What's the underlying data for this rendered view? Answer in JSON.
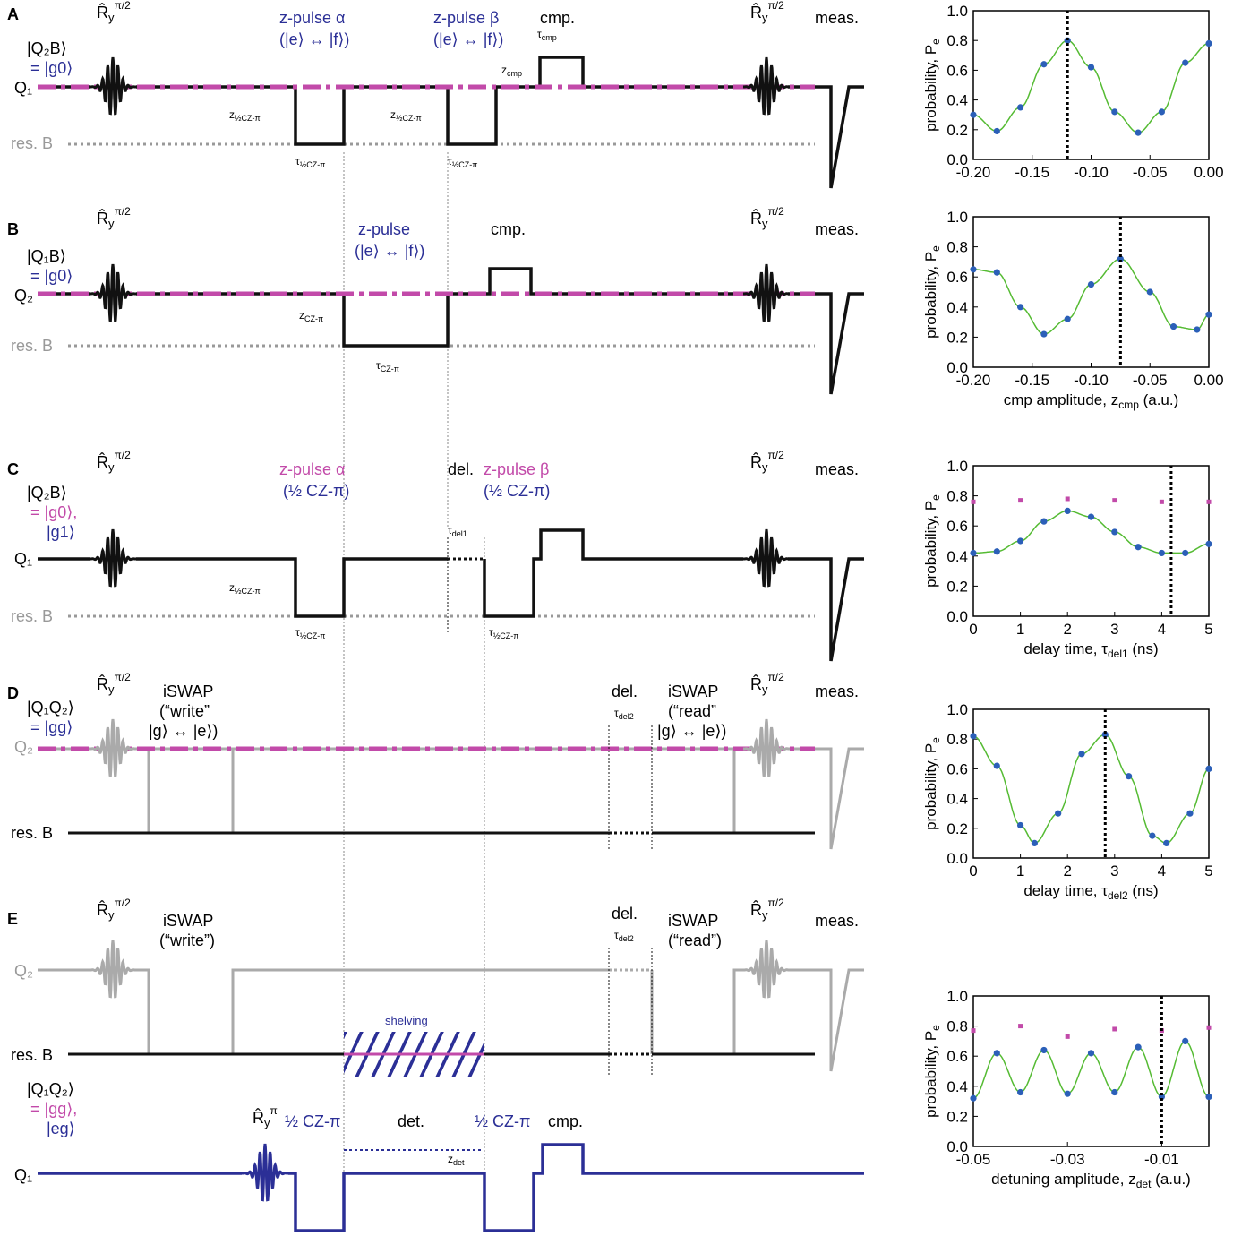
{
  "panels": {
    "A": {
      "letter": "A",
      "state_label": [
        "|Q₂B⟩",
        "= |g0⟩"
      ],
      "qubit": "Q₁",
      "resonator": "res. B",
      "rot": "R̂ᵧ π/2",
      "pulse_alpha": [
        "z-pulse α",
        "(|e⟩ ↔ |f⟩)"
      ],
      "pulse_beta": [
        "z-pulse β",
        "(|e⟩ ↔ |f⟩)"
      ],
      "cmp": "cmp.",
      "meas": "meas."
    },
    "B": {
      "letter": "B",
      "state_label": [
        "|Q₁B⟩",
        "= |g0⟩"
      ],
      "qubit": "Q₂",
      "resonator": "res. B",
      "pulse": [
        "z-pulse",
        "(|e⟩ ↔ |f⟩)"
      ],
      "cmp": "cmp.",
      "meas": "meas."
    },
    "C": {
      "letter": "C",
      "state_label": [
        "|Q₂B⟩",
        "= |g0⟩,",
        "|g1⟩"
      ],
      "qubit": "Q₁",
      "resonator": "res. B",
      "pulse_alpha": [
        "z-pulse α",
        "(½ CZ-π)"
      ],
      "del": "del.",
      "pulse_beta": [
        "z-pulse β",
        "(½ CZ-π)"
      ],
      "meas": "meas."
    },
    "D": {
      "letter": "D",
      "state_label": [
        "|Q₁Q₂⟩",
        "= |gg⟩"
      ],
      "qubit": "Q₂",
      "resonator": "res. B",
      "iswap_write": [
        "iSWAP",
        "(“write”",
        "|g⟩ ↔ |e⟩)"
      ],
      "iswap_read": [
        "iSWAP",
        "(“read”",
        "|g⟩ ↔ |e⟩)"
      ],
      "del": "del.",
      "meas": "meas."
    },
    "E": {
      "letter": "E",
      "qubit2": "Q₂",
      "resonator": "res. B",
      "qubit1": "Q₁",
      "state_label": [
        "|Q₁Q₂⟩",
        "= |gg⟩,",
        "|eg⟩"
      ],
      "iswap_write": [
        "iSWAP",
        "(“write”)"
      ],
      "iswap_read": [
        "iSWAP",
        "(“read”)"
      ],
      "shelving": "shelving",
      "half_cz1": "½ CZ-π",
      "det": "det.",
      "half_cz2": "½ CZ-π",
      "cmp": "cmp.",
      "del": "del.",
      "meas": "meas."
    }
  },
  "plots": {
    "ylabel": "probability, P",
    "ylabel_sub": "e",
    "A": {
      "xticks": [
        "-0.20",
        "-0.15",
        "-0.10",
        "-0.05",
        "0.00"
      ],
      "xlabel": "",
      "marker": -0.12
    },
    "B": {
      "xticks": [
        "-0.20",
        "-0.15",
        "-0.10",
        "-0.05",
        "0.00"
      ],
      "xlabel": "cmp amplitude, z",
      "xlabel_sub": "cmp",
      "xlabel_tail": " (a.u.)",
      "marker": -0.075
    },
    "C": {
      "xticks": [
        "0",
        "1",
        "2",
        "3",
        "4",
        "5"
      ],
      "xlabel": "delay time, τ",
      "xlabel_sub": "del1",
      "xlabel_tail": " (ns)",
      "marker": 4.2
    },
    "D": {
      "xticks": [
        "0",
        "1",
        "2",
        "3",
        "4",
        "5"
      ],
      "xlabel": "delay time, τ",
      "xlabel_sub": "del2",
      "xlabel_tail": " (ns)",
      "marker": 2.8
    },
    "E": {
      "xticks": [
        "-0.05",
        "-0.03",
        "-0.01"
      ],
      "xlabel": "detuning amplitude, z",
      "xlabel_sub": "det",
      "xlabel_tail": " (a.u.)",
      "marker": -0.01
    },
    "yticks": [
      "0.0",
      "0.2",
      "0.4",
      "0.6",
      "0.8",
      "1.0"
    ]
  },
  "chart_data": [
    {
      "type": "scatter",
      "panel": "A",
      "xlim": [
        -0.2,
        0.0
      ],
      "ylim": [
        0,
        1
      ],
      "series": [
        {
          "values": [
            [
              -0.2,
              0.3
            ],
            [
              -0.18,
              0.19
            ],
            [
              -0.16,
              0.35
            ],
            [
              -0.14,
              0.64
            ],
            [
              -0.12,
              0.8
            ],
            [
              -0.1,
              0.62
            ],
            [
              -0.08,
              0.32
            ],
            [
              -0.06,
              0.18
            ],
            [
              -0.04,
              0.32
            ],
            [
              -0.02,
              0.65
            ],
            [
              0.0,
              0.78
            ]
          ]
        }
      ]
    },
    {
      "type": "scatter",
      "panel": "B",
      "xlim": [
        -0.2,
        0.0
      ],
      "ylim": [
        0,
        1
      ],
      "series": [
        {
          "values": [
            [
              -0.2,
              0.65
            ],
            [
              -0.18,
              0.63
            ],
            [
              -0.16,
              0.4
            ],
            [
              -0.14,
              0.22
            ],
            [
              -0.12,
              0.32
            ],
            [
              -0.1,
              0.55
            ],
            [
              -0.075,
              0.72
            ],
            [
              -0.05,
              0.5
            ],
            [
              -0.03,
              0.27
            ],
            [
              -0.01,
              0.25
            ],
            [
              0.0,
              0.35
            ]
          ]
        }
      ]
    },
    {
      "type": "scatter",
      "panel": "C",
      "xlim": [
        0,
        5
      ],
      "ylim": [
        0,
        1
      ],
      "series": [
        {
          "values": [
            [
              0,
              0.42
            ],
            [
              0.5,
              0.43
            ],
            [
              1,
              0.5
            ],
            [
              1.5,
              0.63
            ],
            [
              2,
              0.7
            ],
            [
              2.5,
              0.66
            ],
            [
              3,
              0.56
            ],
            [
              3.5,
              0.46
            ],
            [
              4,
              0.42
            ],
            [
              4.5,
              0.42
            ],
            [
              5,
              0.48
            ]
          ]
        },
        {
          "values": [
            [
              0,
              0.76
            ],
            [
              1,
              0.77
            ],
            [
              2,
              0.78
            ],
            [
              3,
              0.77
            ],
            [
              4,
              0.76
            ],
            [
              5,
              0.76
            ]
          ]
        }
      ]
    },
    {
      "type": "scatter",
      "panel": "D",
      "xlim": [
        0,
        5
      ],
      "ylim": [
        0,
        1
      ],
      "series": [
        {
          "values": [
            [
              0,
              0.82
            ],
            [
              0.5,
              0.62
            ],
            [
              1,
              0.22
            ],
            [
              1.3,
              0.1
            ],
            [
              1.8,
              0.3
            ],
            [
              2.3,
              0.7
            ],
            [
              2.8,
              0.83
            ],
            [
              3.3,
              0.55
            ],
            [
              3.8,
              0.15
            ],
            [
              4.1,
              0.1
            ],
            [
              4.6,
              0.3
            ],
            [
              5,
              0.6
            ]
          ]
        }
      ]
    },
    {
      "type": "scatter",
      "panel": "E",
      "xlim": [
        -0.05,
        0.0
      ],
      "ylim": [
        0,
        1
      ],
      "series": [
        {
          "values": [
            [
              -0.05,
              0.32
            ],
            [
              -0.045,
              0.62
            ],
            [
              -0.04,
              0.36
            ],
            [
              -0.035,
              0.64
            ],
            [
              -0.03,
              0.35
            ],
            [
              -0.025,
              0.62
            ],
            [
              -0.02,
              0.36
            ],
            [
              -0.015,
              0.66
            ],
            [
              -0.01,
              0.33
            ],
            [
              -0.005,
              0.7
            ],
            [
              0.0,
              0.33
            ]
          ]
        },
        {
          "values": [
            [
              -0.05,
              0.77
            ],
            [
              -0.04,
              0.8
            ],
            [
              -0.03,
              0.73
            ],
            [
              -0.02,
              0.78
            ],
            [
              -0.01,
              0.77
            ],
            [
              0.0,
              0.79
            ]
          ]
        }
      ]
    }
  ]
}
